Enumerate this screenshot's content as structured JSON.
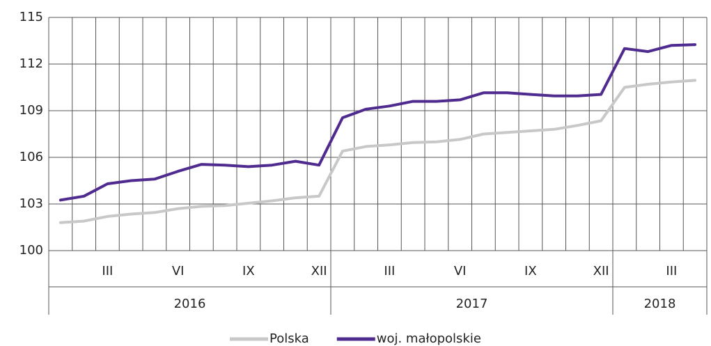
{
  "chart_data": {
    "type": "line",
    "categories": [
      null,
      null,
      "III",
      null,
      null,
      "VI",
      null,
      null,
      "IX",
      null,
      null,
      "XII",
      null,
      null,
      "III",
      null,
      null,
      "VI",
      null,
      null,
      "IX",
      null,
      null,
      "XII",
      null,
      null,
      "III",
      null
    ],
    "year_groups": [
      {
        "label": "2016",
        "months": 12
      },
      {
        "label": "2017",
        "months": 12
      },
      {
        "label": "2018",
        "months": 4
      }
    ],
    "series": [
      {
        "name": "Polska",
        "color": "#c8c8c8",
        "values": [
          101.8,
          101.9,
          102.2,
          102.35,
          102.45,
          102.7,
          102.85,
          102.9,
          103.05,
          103.2,
          103.4,
          103.5,
          106.4,
          106.7,
          106.8,
          106.95,
          107.0,
          107.15,
          107.5,
          107.6,
          107.7,
          107.8,
          108.05,
          108.35,
          110.5,
          110.7,
          110.85,
          110.95
        ]
      },
      {
        "name": "woj. małopolskie",
        "color": "#4f2a8f",
        "values": [
          103.25,
          103.5,
          104.3,
          104.5,
          104.6,
          105.1,
          105.55,
          105.5,
          105.4,
          105.5,
          105.75,
          105.5,
          108.55,
          109.1,
          109.3,
          109.6,
          109.6,
          109.7,
          110.15,
          110.15,
          110.05,
          109.95,
          109.95,
          110.05,
          113.0,
          112.8,
          113.2,
          113.25
        ]
      }
    ],
    "ylim": [
      100,
      115
    ],
    "yticks": [
      100,
      103,
      106,
      109,
      112,
      115
    ],
    "grid": true,
    "legend": "bottom"
  }
}
